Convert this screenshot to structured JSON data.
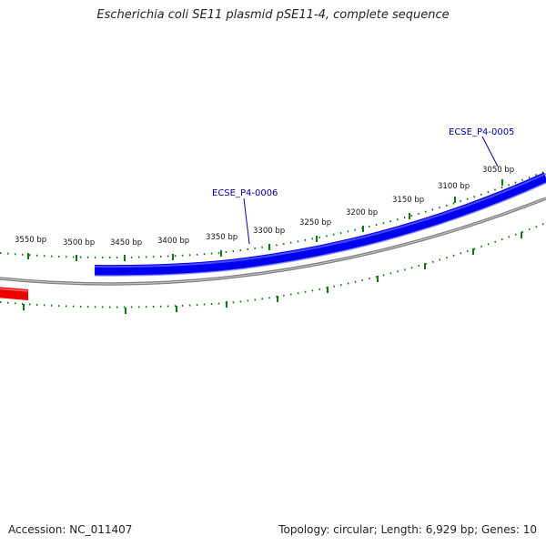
{
  "title": "Escherichia coli SE11 plasmid pSE11-4, complete sequence",
  "footer": {
    "accession": "Accession: NC_011407",
    "summary": "Topology: circular; Length: 6,929 bp; Genes: 10"
  },
  "tick_labels": [
    "3550 bp",
    "3500 bp",
    "3450 bp",
    "3400 bp",
    "3350 bp",
    "3300 bp",
    "3250 bp",
    "3200 bp",
    "3150 bp",
    "3100 bp",
    "3050 bp"
  ],
  "genes": [
    {
      "label": "ECSE_P4-0005"
    },
    {
      "label": "ECSE_P4-0006"
    }
  ],
  "colors": {
    "gene_forward": "#0000ee",
    "gene_other": "#ee0000",
    "backbone": "#808080",
    "ticks": "#117711"
  }
}
